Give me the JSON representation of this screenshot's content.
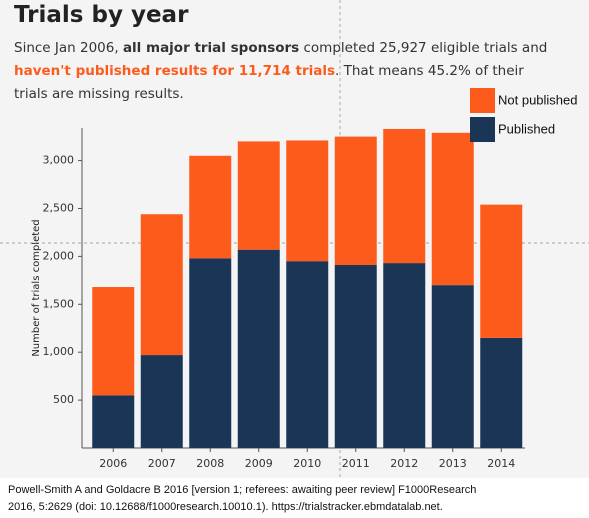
{
  "chart_data": {
    "type": "stacked_bar",
    "title": "Trials by year",
    "subtitle": [
      {
        "text": "Since Jan 2006, ",
        "style": "normal"
      },
      {
        "text": "all major trial sponsors",
        "style": "bold"
      },
      {
        "text": " completed 25,927 eligible trials and ",
        "style": "normal"
      },
      {
        "text": "haven't published results for 11,714 trials",
        "style": "accent"
      },
      {
        "text": ". That means 45.2% of their trials are missing results.",
        "style": "normal"
      }
    ],
    "y_label": "Number of trials completed",
    "categories": [
      "2006",
      "2007",
      "2008",
      "2009",
      "2010",
      "2011",
      "2012",
      "2013",
      "2014"
    ],
    "series": [
      {
        "name": "Published",
        "color": "#1b3556",
        "values": [
          550,
          970,
          1980,
          2070,
          1950,
          1910,
          1930,
          1700,
          1150
        ]
      },
      {
        "name": "Not published",
        "color": "#fc5b1c",
        "values": [
          1130,
          1470,
          1070,
          1130,
          1260,
          1340,
          1400,
          1590,
          1390
        ]
      }
    ],
    "legend_order": [
      1,
      0
    ],
    "ylim": [
      0,
      3340
    ],
    "yticks": [
      500,
      {
        "value": 1000,
        "label": "1,000"
      },
      {
        "value": 1500,
        "label": "1,500"
      },
      {
        "value": 2000,
        "label": "2,000"
      },
      {
        "value": 2500,
        "label": "2,500"
      },
      {
        "value": 3000,
        "label": "3,000"
      }
    ],
    "caption": [
      "Powell-Smith A and Goldacre B 2016 [version 1; referees: awaiting peer review] F1000Research",
      "2016, 5:2629 (doi: 10.12688/f1000research.10010.1). https://trialstracker.ebmdatalab.net."
    ]
  }
}
